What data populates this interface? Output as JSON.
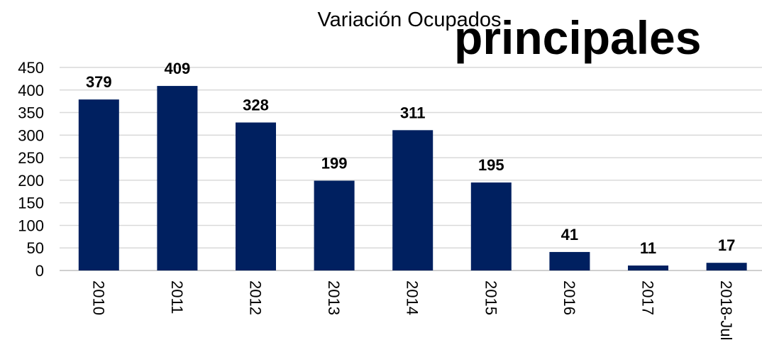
{
  "chart_data": {
    "type": "bar",
    "title": "Variación Ocupados",
    "overlay_text": "principales",
    "categories": [
      "2010",
      "2011",
      "2012",
      "2013",
      "2014",
      "2015",
      "2016",
      "2017",
      "2018-Jul"
    ],
    "values": [
      379,
      409,
      328,
      199,
      311,
      195,
      41,
      11,
      17
    ],
    "color": "#002060",
    "overlay_color": "#a0102a",
    "ylim": [
      0,
      450
    ],
    "yticks": [
      0,
      50,
      100,
      150,
      200,
      250,
      300,
      350,
      400,
      450
    ],
    "grid": true
  }
}
